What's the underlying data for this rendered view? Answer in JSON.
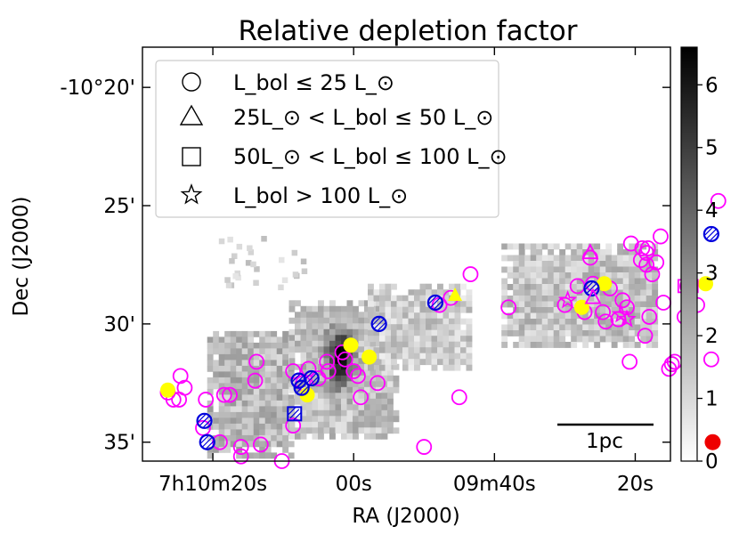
{
  "chart_data": {
    "type": "scatter",
    "title": "Relative depletion factor",
    "xlabel": "RA (J2000)",
    "ylabel": "Dec (J2000)",
    "x_ticks": [
      {
        "value": 430,
        "label": "7h10m20s"
      },
      {
        "value": 420,
        "label": "00s"
      },
      {
        "value": 410,
        "label": "09m40s"
      },
      {
        "value": 400,
        "label": "20s"
      }
    ],
    "y_ticks": [
      {
        "value": -20,
        "label": "-10°20'"
      },
      {
        "value": -25,
        "label": "25'"
      },
      {
        "value": -30,
        "label": "30'"
      },
      {
        "value": -35,
        "label": "35'"
      }
    ],
    "x_range": [
      435,
      397.5
    ],
    "y_range": [
      -35.8,
      -18.3
    ],
    "colorbar": {
      "min": 0,
      "max": 6.6,
      "ticks": [
        0,
        1,
        2,
        3,
        4,
        5,
        6
      ],
      "cmap": "gray_r"
    },
    "legend": {
      "placement": "upper-left",
      "entries": [
        {
          "marker": "circle",
          "label": "L_bol ≤ 25 L_⊙"
        },
        {
          "marker": "triangle",
          "label": "25L_⊙ < L_bol ≤ 50 L_⊙"
        },
        {
          "marker": "square",
          "label": "50L_⊙ < L_bol ≤ 100 L_⊙"
        },
        {
          "marker": "star",
          "label": "L_bol > 100 L_⊙"
        }
      ]
    },
    "scalebar_label": "1pc",
    "colors": {
      "magenta": "#ff00ff",
      "blue": "#0000dd",
      "yellow": "#ffff00",
      "red": "#ee0000"
    },
    "regions": [
      {
        "x": [
          430.4,
          424.3
        ],
        "y": [
          -35.5,
          -30.3
        ],
        "base": 1.8
      },
      {
        "x": [
          424.6,
          416.9
        ],
        "y": [
          -34.8,
          -29.0
        ],
        "base": 1.6
      },
      {
        "x": [
          419.0,
          412.0
        ],
        "y": [
          -31.8,
          -28.3
        ],
        "base": 1.3
      },
      {
        "x": [
          409.5,
          398.5
        ],
        "y": [
          -30.8,
          -26.6
        ],
        "base": 1.5
      }
    ],
    "dark_spot": {
      "x": 421.2,
      "y": -31.3,
      "peak": 6.5
    },
    "sources": {
      "magenta_circles": [
        [
          433.2,
          -32.9
        ],
        [
          432.8,
          -33.2
        ],
        [
          432.3,
          -32.2
        ],
        [
          432.0,
          -32.7
        ],
        [
          432.4,
          -33.2
        ],
        [
          430.7,
          -34.4
        ],
        [
          430.5,
          -33.2
        ],
        [
          429.2,
          -33.0
        ],
        [
          428.8,
          -33.0
        ],
        [
          429.5,
          -35.0
        ],
        [
          428.0,
          -35.2
        ],
        [
          428.0,
          -35.6
        ],
        [
          426.6,
          -35.1
        ],
        [
          427.0,
          -32.4
        ],
        [
          426.9,
          -31.6
        ],
        [
          425.1,
          -35.8
        ],
        [
          424.3,
          -34.3
        ],
        [
          424.3,
          -32.0
        ],
        [
          423.6,
          -32.5
        ],
        [
          423.2,
          -31.9
        ],
        [
          422.5,
          -32.3
        ],
        [
          421.9,
          -31.6
        ],
        [
          421.8,
          -32.0
        ],
        [
          420.8,
          -31.2
        ],
        [
          420.6,
          -31.5
        ],
        [
          420.0,
          -32.0
        ],
        [
          419.7,
          -32.2
        ],
        [
          419.5,
          -33.1
        ],
        [
          418.3,
          -32.5
        ],
        [
          415.0,
          -35.2
        ],
        [
          413.9,
          -29.2
        ],
        [
          413.1,
          -28.9
        ],
        [
          412.5,
          -33.1
        ],
        [
          411.7,
          -27.9
        ],
        [
          409.0,
          -29.3
        ],
        [
          405.0,
          -29.2
        ],
        [
          404.1,
          -28.4
        ],
        [
          403.6,
          -29.5
        ],
        [
          403.2,
          -27.2
        ],
        [
          403.0,
          -28.3
        ],
        [
          402.3,
          -29.5
        ],
        [
          402.1,
          -29.9
        ],
        [
          401.8,
          -28.5
        ],
        [
          401.2,
          -29.8
        ],
        [
          400.9,
          -29.0
        ],
        [
          400.6,
          -29.3
        ],
        [
          399.3,
          -30.5
        ],
        [
          399.0,
          -29.7
        ],
        [
          400.4,
          -31.6
        ],
        [
          400.3,
          -26.6
        ],
        [
          399.6,
          -27.3
        ],
        [
          399.5,
          -26.8
        ],
        [
          399.2,
          -27.0
        ],
        [
          399.2,
          -27.5
        ],
        [
          399.1,
          -26.8
        ],
        [
          398.8,
          -27.9
        ],
        [
          398.5,
          -27.4
        ],
        [
          398.2,
          -26.3
        ],
        [
          398.0,
          -29.1
        ],
        [
          397.6,
          -31.9
        ],
        [
          397.4,
          -31.7
        ],
        [
          397.2,
          -31.6
        ],
        [
          396.5,
          -29.7
        ],
        [
          396.3,
          -28.4
        ],
        [
          395.6,
          -29.2
        ],
        [
          394.6,
          -31.5
        ],
        [
          394.1,
          -24.8
        ]
      ],
      "blue_circles": [
        [
          430.6,
          -34.1
        ],
        [
          430.4,
          -35.0
        ],
        [
          423.9,
          -32.4
        ],
        [
          423.7,
          -32.7
        ],
        [
          423.0,
          -32.3
        ],
        [
          418.2,
          -30.0
        ],
        [
          414.2,
          -29.1
        ],
        [
          403.1,
          -28.5
        ],
        [
          394.6,
          -26.2
        ]
      ],
      "yellow_circles": [
        [
          420.2,
          -30.9
        ],
        [
          418.9,
          -31.4
        ],
        [
          423.3,
          -33.0
        ],
        [
          403.8,
          -29.3
        ],
        [
          402.2,
          -28.3
        ],
        [
          395.0,
          -28.3
        ],
        [
          433.2,
          -32.8
        ]
      ],
      "yellow_triangles": [
        [
          412.8,
          -28.8
        ]
      ],
      "magenta_triangles": [
        [
          403.2,
          -27.0
        ],
        [
          403.0,
          -28.9
        ]
      ],
      "blue_squares": [
        [
          424.2,
          -33.8
        ]
      ],
      "magenta_squares": [
        [
          396.5,
          -28.4
        ],
        [
          396.0,
          -28.4
        ]
      ],
      "magenta_stars": [
        [
          404.8,
          -29.0
        ],
        [
          401.0,
          -29.6
        ],
        [
          400.6,
          -29.8
        ]
      ],
      "red_dots": [
        [
          394.5,
          -35.0
        ]
      ]
    }
  }
}
